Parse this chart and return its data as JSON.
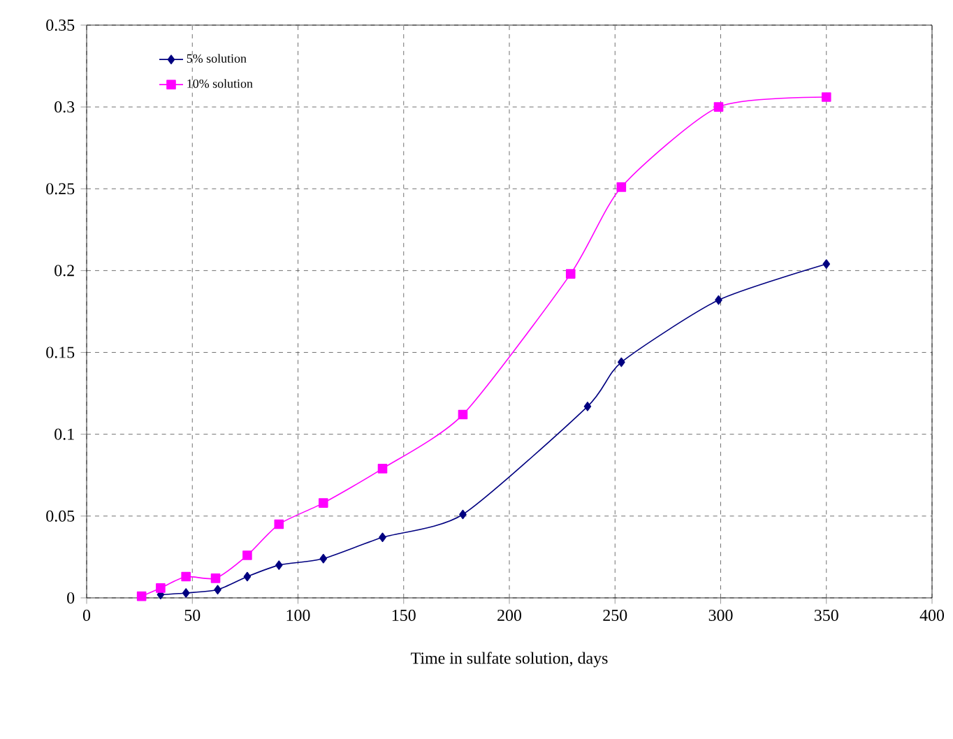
{
  "chart_data": {
    "type": "line",
    "xlabel": "Time in sulfate solution, days",
    "xlim": [
      0,
      400
    ],
    "xticks": [
      0,
      50,
      100,
      150,
      200,
      250,
      300,
      350,
      400
    ],
    "ylim": [
      0,
      0.35
    ],
    "yticks": [
      0,
      0.05,
      0.1,
      0.15,
      0.2,
      0.25,
      0.3,
      0.35
    ],
    "grid": true,
    "legend": "top left",
    "line_style": "solid",
    "series": [
      {
        "name": "5% solution",
        "color": "#000080",
        "marker": "diamond",
        "x": [
          35,
          47,
          62,
          76,
          91,
          112,
          140,
          178,
          237,
          253,
          299,
          350
        ],
        "values": [
          0.002,
          0.003,
          0.005,
          0.013,
          0.02,
          0.024,
          0.037,
          0.051,
          0.117,
          0.144,
          0.182,
          0.204
        ]
      },
      {
        "name": "10% solution",
        "color": "#ff00ff",
        "marker": "square",
        "x": [
          26,
          35,
          47,
          61,
          76,
          91,
          112,
          140,
          178,
          229,
          253,
          299,
          350
        ],
        "values": [
          0.001,
          0.006,
          0.013,
          0.012,
          0.026,
          0.045,
          0.058,
          0.079,
          0.112,
          0.198,
          0.251,
          0.3,
          0.306
        ]
      }
    ]
  }
}
